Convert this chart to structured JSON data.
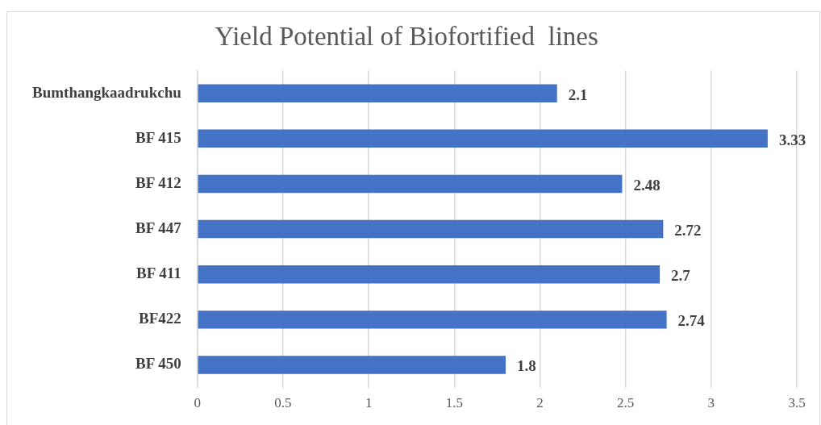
{
  "chart_data": {
    "type": "bar",
    "orientation": "horizontal",
    "title": "Yield Potential of Biofortified  lines",
    "categories": [
      "Bumthangkaadrukchu",
      "BF 415",
      "BF 412",
      "BF 447",
      "BF 411",
      "BF422",
      "BF 450"
    ],
    "values": [
      2.1,
      3.33,
      2.48,
      2.72,
      2.7,
      2.74,
      1.8
    ],
    "color": "#4472c4",
    "xlim": [
      0,
      3.5
    ],
    "xticks": [
      0,
      0.5,
      1,
      1.5,
      2,
      2.5,
      3,
      3.5
    ],
    "grid": "x",
    "data_labels": true,
    "legend": false
  }
}
